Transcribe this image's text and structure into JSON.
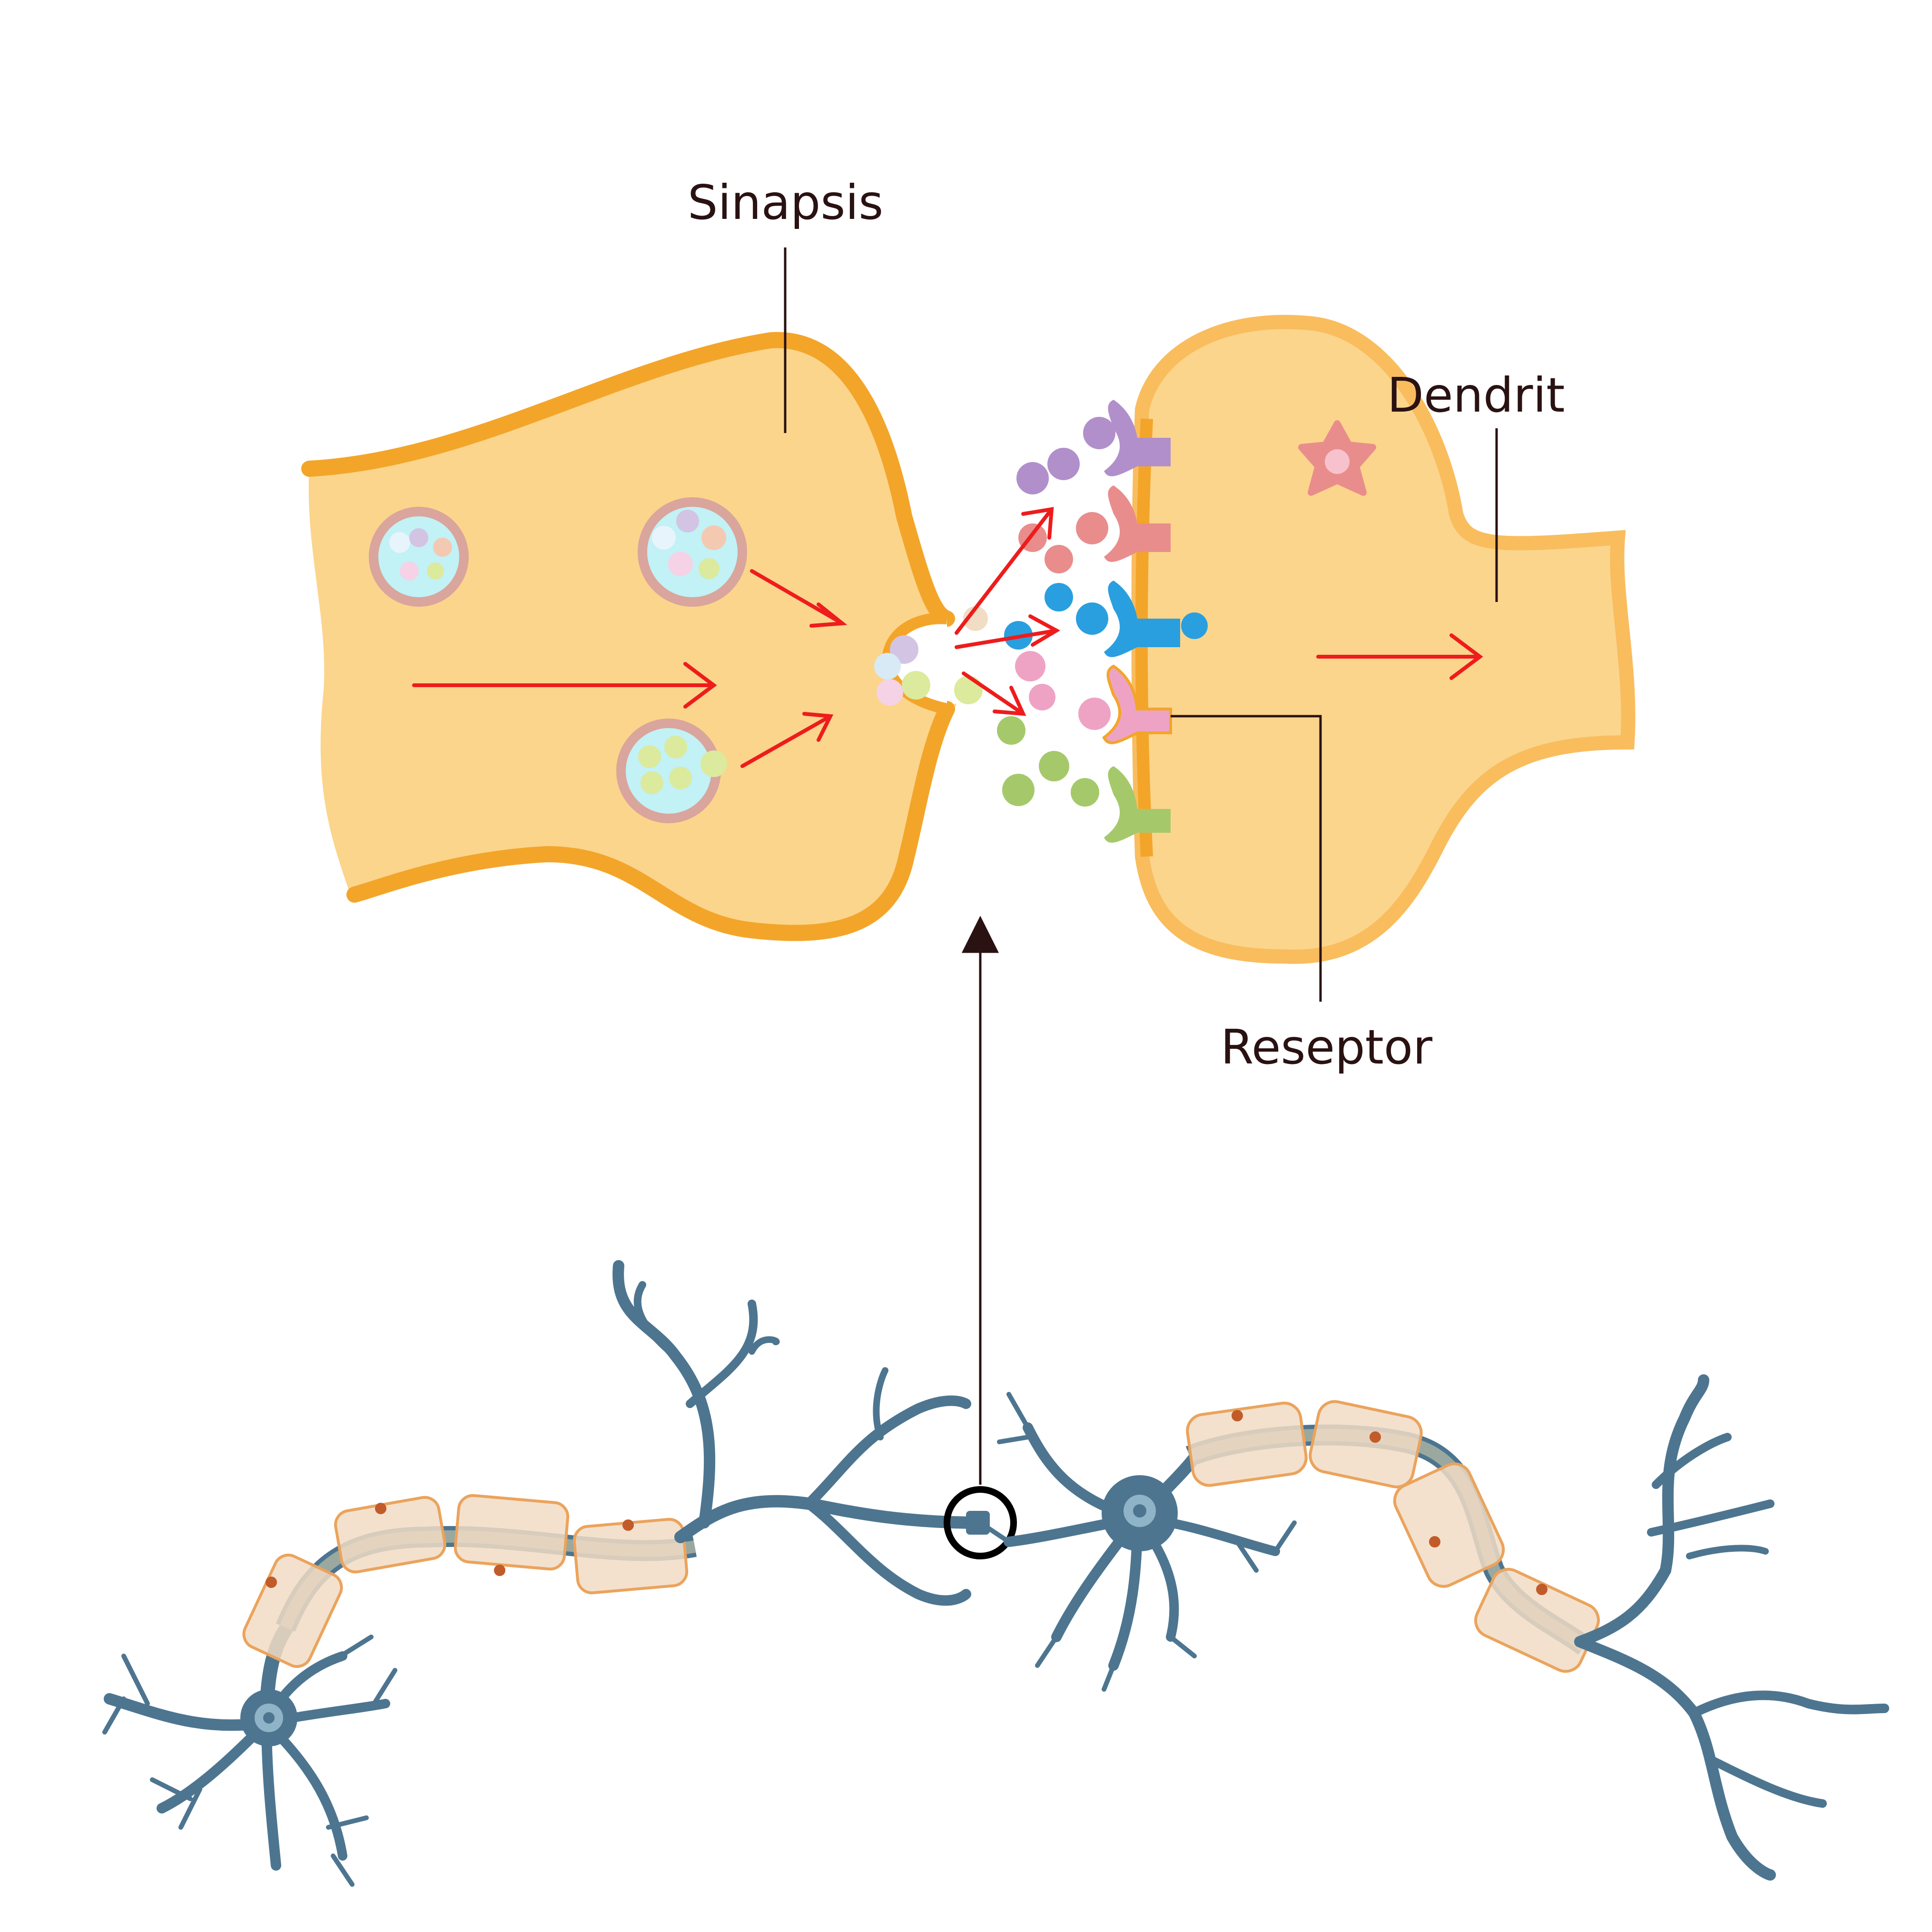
{
  "labels": {
    "synapse": "Sinapsis",
    "dendrite": "Dendrit",
    "receptor": "Reseptor"
  },
  "colors": {
    "background": "#ffffff",
    "terminal_fill": "#fbd58c",
    "terminal_membrane": "#f3a52a",
    "terminal_membrane_light": "#f9bd5e",
    "vesicle_fill": "#c2f1f6",
    "vesicle_ring": "#d9a59c",
    "arrow_red": "#ee1c1c",
    "leader_line": "#2a1212",
    "neuron_blue": "#4d7590",
    "myelin_fill": "#f1dcc4",
    "myelin_border": "#eba35c",
    "axon_core": "#9aa89f",
    "nt_purple": "#b18fcb",
    "nt_red": "#e98d8c",
    "nt_blue": "#2a9fdf",
    "nt_pink": "#eea3c5",
    "nt_green": "#a5c96a"
  },
  "icons": {
    "zoom_marker": "magnify-circle-icon",
    "star_receptor": "flower-star-icon"
  }
}
